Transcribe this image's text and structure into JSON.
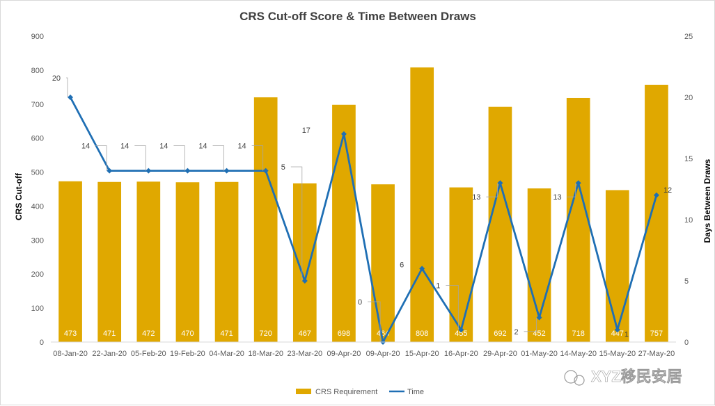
{
  "chart_data": {
    "type": "bar+line",
    "title": "CRS Cut-off Score & Time Between Draws",
    "ylabel": "CRS Cut-off",
    "y2label": "Days Between Draws",
    "ylim": [
      0,
      900
    ],
    "y2lim": [
      0,
      25
    ],
    "yticks": [
      0,
      100,
      200,
      300,
      400,
      500,
      600,
      700,
      800,
      900
    ],
    "y2ticks": [
      0,
      5,
      10,
      15,
      20,
      25
    ],
    "categories": [
      "08-Jan-20",
      "22-Jan-20",
      "05-Feb-20",
      "19-Feb-20",
      "04-Mar-20",
      "18-Mar-20",
      "23-Mar-20",
      "09-Apr-20",
      "09-Apr-20",
      "15-Apr-20",
      "16-Apr-20",
      "29-Apr-20",
      "01-May-20",
      "14-May-20",
      "15-May-20",
      "27-May-20"
    ],
    "series": [
      {
        "name": "CRS Requirement",
        "type": "bar",
        "axis": "left",
        "color": "#e0a800",
        "values": [
          473,
          471,
          472,
          470,
          471,
          720,
          467,
          698,
          464,
          808,
          455,
          692,
          452,
          718,
          447,
          757
        ]
      },
      {
        "name": "Time",
        "type": "line",
        "axis": "right",
        "color": "#1f6fb4",
        "values": [
          20,
          14,
          14,
          14,
          14,
          14,
          5,
          17,
          0,
          6,
          1,
          13,
          2,
          13,
          1,
          12
        ]
      }
    ],
    "grid": false,
    "legend": "bottom"
  },
  "watermark": "XYZ移民安居"
}
